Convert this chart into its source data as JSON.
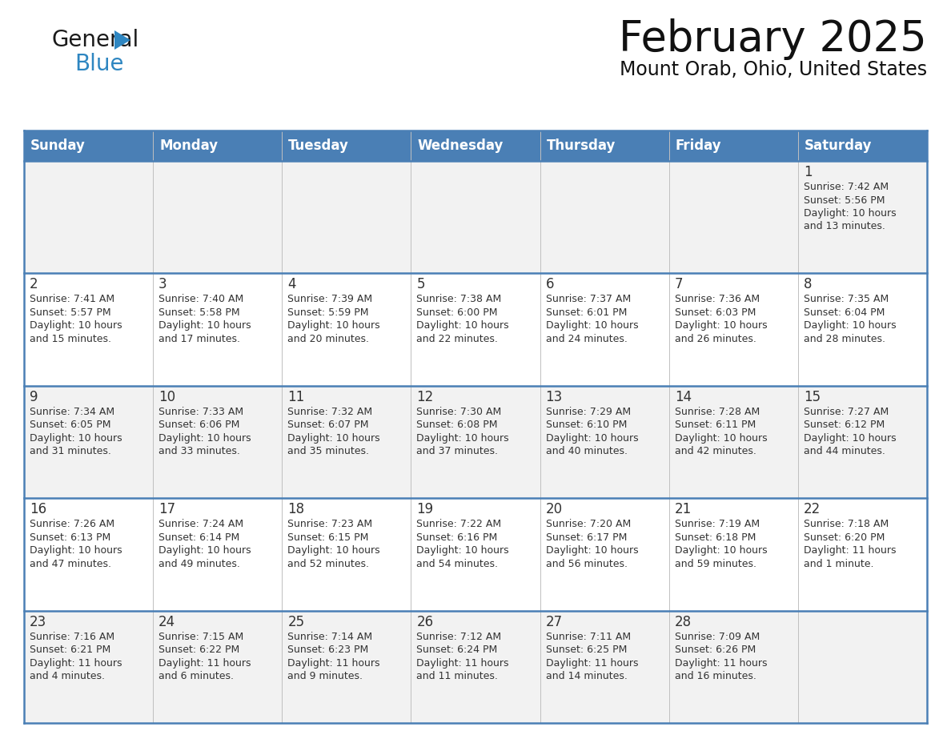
{
  "title": "February 2025",
  "subtitle": "Mount Orab, Ohio, United States",
  "days_of_week": [
    "Sunday",
    "Monday",
    "Tuesday",
    "Wednesday",
    "Thursday",
    "Friday",
    "Saturday"
  ],
  "header_bg": "#4a7fb5",
  "header_text": "#ffffff",
  "row_bg_odd": "#f2f2f2",
  "row_bg_even": "#ffffff",
  "separator_color": "#4a7fb5",
  "cell_text_color": "#333333",
  "day_num_color": "#333333",
  "calendar_data": [
    {
      "day": 1,
      "col": 6,
      "row": 0,
      "sunrise": "7:42 AM",
      "sunset": "5:56 PM",
      "daylight": "10 hours and 13 minutes."
    },
    {
      "day": 2,
      "col": 0,
      "row": 1,
      "sunrise": "7:41 AM",
      "sunset": "5:57 PM",
      "daylight": "10 hours and 15 minutes."
    },
    {
      "day": 3,
      "col": 1,
      "row": 1,
      "sunrise": "7:40 AM",
      "sunset": "5:58 PM",
      "daylight": "10 hours and 17 minutes."
    },
    {
      "day": 4,
      "col": 2,
      "row": 1,
      "sunrise": "7:39 AM",
      "sunset": "5:59 PM",
      "daylight": "10 hours and 20 minutes."
    },
    {
      "day": 5,
      "col": 3,
      "row": 1,
      "sunrise": "7:38 AM",
      "sunset": "6:00 PM",
      "daylight": "10 hours and 22 minutes."
    },
    {
      "day": 6,
      "col": 4,
      "row": 1,
      "sunrise": "7:37 AM",
      "sunset": "6:01 PM",
      "daylight": "10 hours and 24 minutes."
    },
    {
      "day": 7,
      "col": 5,
      "row": 1,
      "sunrise": "7:36 AM",
      "sunset": "6:03 PM",
      "daylight": "10 hours and 26 minutes."
    },
    {
      "day": 8,
      "col": 6,
      "row": 1,
      "sunrise": "7:35 AM",
      "sunset": "6:04 PM",
      "daylight": "10 hours and 28 minutes."
    },
    {
      "day": 9,
      "col": 0,
      "row": 2,
      "sunrise": "7:34 AM",
      "sunset": "6:05 PM",
      "daylight": "10 hours and 31 minutes."
    },
    {
      "day": 10,
      "col": 1,
      "row": 2,
      "sunrise": "7:33 AM",
      "sunset": "6:06 PM",
      "daylight": "10 hours and 33 minutes."
    },
    {
      "day": 11,
      "col": 2,
      "row": 2,
      "sunrise": "7:32 AM",
      "sunset": "6:07 PM",
      "daylight": "10 hours and 35 minutes."
    },
    {
      "day": 12,
      "col": 3,
      "row": 2,
      "sunrise": "7:30 AM",
      "sunset": "6:08 PM",
      "daylight": "10 hours and 37 minutes."
    },
    {
      "day": 13,
      "col": 4,
      "row": 2,
      "sunrise": "7:29 AM",
      "sunset": "6:10 PM",
      "daylight": "10 hours and 40 minutes."
    },
    {
      "day": 14,
      "col": 5,
      "row": 2,
      "sunrise": "7:28 AM",
      "sunset": "6:11 PM",
      "daylight": "10 hours and 42 minutes."
    },
    {
      "day": 15,
      "col": 6,
      "row": 2,
      "sunrise": "7:27 AM",
      "sunset": "6:12 PM",
      "daylight": "10 hours and 44 minutes."
    },
    {
      "day": 16,
      "col": 0,
      "row": 3,
      "sunrise": "7:26 AM",
      "sunset": "6:13 PM",
      "daylight": "10 hours and 47 minutes."
    },
    {
      "day": 17,
      "col": 1,
      "row": 3,
      "sunrise": "7:24 AM",
      "sunset": "6:14 PM",
      "daylight": "10 hours and 49 minutes."
    },
    {
      "day": 18,
      "col": 2,
      "row": 3,
      "sunrise": "7:23 AM",
      "sunset": "6:15 PM",
      "daylight": "10 hours and 52 minutes."
    },
    {
      "day": 19,
      "col": 3,
      "row": 3,
      "sunrise": "7:22 AM",
      "sunset": "6:16 PM",
      "daylight": "10 hours and 54 minutes."
    },
    {
      "day": 20,
      "col": 4,
      "row": 3,
      "sunrise": "7:20 AM",
      "sunset": "6:17 PM",
      "daylight": "10 hours and 56 minutes."
    },
    {
      "day": 21,
      "col": 5,
      "row": 3,
      "sunrise": "7:19 AM",
      "sunset": "6:18 PM",
      "daylight": "10 hours and 59 minutes."
    },
    {
      "day": 22,
      "col": 6,
      "row": 3,
      "sunrise": "7:18 AM",
      "sunset": "6:20 PM",
      "daylight": "11 hours and 1 minute."
    },
    {
      "day": 23,
      "col": 0,
      "row": 4,
      "sunrise": "7:16 AM",
      "sunset": "6:21 PM",
      "daylight": "11 hours and 4 minutes."
    },
    {
      "day": 24,
      "col": 1,
      "row": 4,
      "sunrise": "7:15 AM",
      "sunset": "6:22 PM",
      "daylight": "11 hours and 6 minutes."
    },
    {
      "day": 25,
      "col": 2,
      "row": 4,
      "sunrise": "7:14 AM",
      "sunset": "6:23 PM",
      "daylight": "11 hours and 9 minutes."
    },
    {
      "day": 26,
      "col": 3,
      "row": 4,
      "sunrise": "7:12 AM",
      "sunset": "6:24 PM",
      "daylight": "11 hours and 11 minutes."
    },
    {
      "day": 27,
      "col": 4,
      "row": 4,
      "sunrise": "7:11 AM",
      "sunset": "6:25 PM",
      "daylight": "11 hours and 14 minutes."
    },
    {
      "day": 28,
      "col": 5,
      "row": 4,
      "sunrise": "7:09 AM",
      "sunset": "6:26 PM",
      "daylight": "11 hours and 16 minutes."
    }
  ],
  "logo_color_general": "#1a1a1a",
  "logo_color_blue": "#2e86c1",
  "logo_triangle_color": "#2e86c1",
  "title_fontsize": 38,
  "subtitle_fontsize": 17,
  "header_fontsize": 12,
  "day_num_fontsize": 12,
  "cell_fontsize": 9
}
